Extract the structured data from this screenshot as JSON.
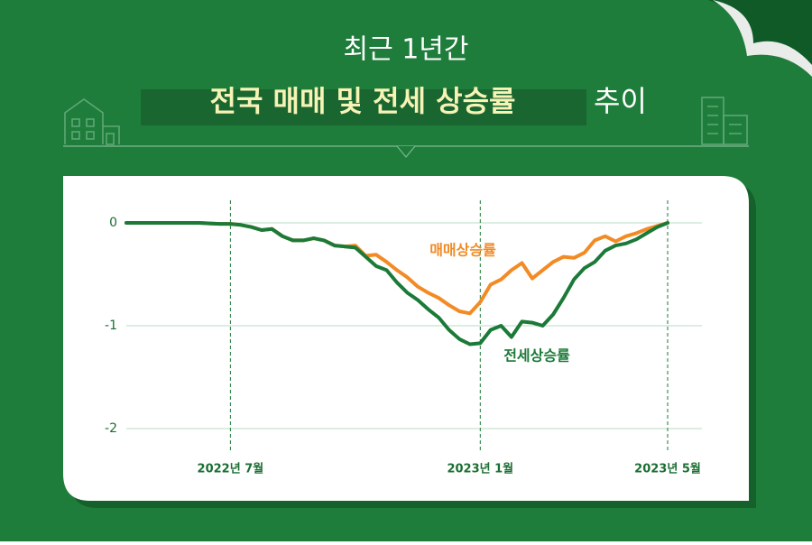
{
  "chart_data": {
    "type": "line",
    "title": "최근 1년간",
    "subtitle": "전국 매매 및 전세 상승률",
    "subtitle_suffix": "추이",
    "categories": [
      null,
      null,
      null,
      null,
      null,
      null,
      null,
      null,
      null,
      null,
      "2022년 7월",
      null,
      null,
      null,
      null,
      null,
      null,
      null,
      null,
      null,
      null,
      null,
      null,
      null,
      null,
      null,
      null,
      null,
      null,
      null,
      null,
      null,
      null,
      null,
      "2023년 1월",
      null,
      null,
      null,
      null,
      null,
      null,
      null,
      null,
      null,
      null,
      null,
      null,
      null,
      null,
      null,
      null,
      null,
      "2023년 5월"
    ],
    "series": [
      {
        "name": "매매상승률",
        "color": "#f28b25",
        "values": [
          0,
          0,
          0,
          0,
          0,
          0,
          0,
          0,
          -0.005,
          -0.01,
          -0.01,
          -0.02,
          -0.04,
          -0.07,
          -0.06,
          -0.13,
          -0.17,
          -0.17,
          -0.15,
          -0.17,
          -0.22,
          -0.23,
          -0.22,
          -0.32,
          -0.31,
          -0.38,
          -0.46,
          -0.53,
          -0.62,
          -0.68,
          -0.73,
          -0.8,
          -0.86,
          -0.88,
          -0.77,
          -0.6,
          -0.55,
          -0.46,
          -0.39,
          -0.54,
          -0.46,
          -0.38,
          -0.33,
          -0.34,
          -0.29,
          -0.17,
          -0.13,
          -0.18,
          -0.13,
          -0.1,
          -0.06,
          -0.03,
          0
        ]
      },
      {
        "name": "전세상승률",
        "color": "#1b7a38",
        "values": [
          0,
          0,
          0,
          0,
          0,
          0,
          0,
          0,
          -0.005,
          -0.01,
          -0.01,
          -0.02,
          -0.04,
          -0.07,
          -0.06,
          -0.13,
          -0.17,
          -0.17,
          -0.15,
          -0.17,
          -0.22,
          -0.23,
          -0.24,
          -0.33,
          -0.42,
          -0.46,
          -0.58,
          -0.68,
          -0.75,
          -0.84,
          -0.92,
          -1.04,
          -1.13,
          -1.18,
          -1.17,
          -1.04,
          -1.0,
          -1.11,
          -0.96,
          -0.97,
          -1.0,
          -0.89,
          -0.73,
          -0.55,
          -0.44,
          -0.38,
          -0.27,
          -0.22,
          -0.2,
          -0.16,
          -0.1,
          -0.04,
          0
        ]
      }
    ],
    "ylim": [
      -2,
      0
    ],
    "yticks": [
      0,
      -1,
      -2
    ],
    "grid": true
  }
}
